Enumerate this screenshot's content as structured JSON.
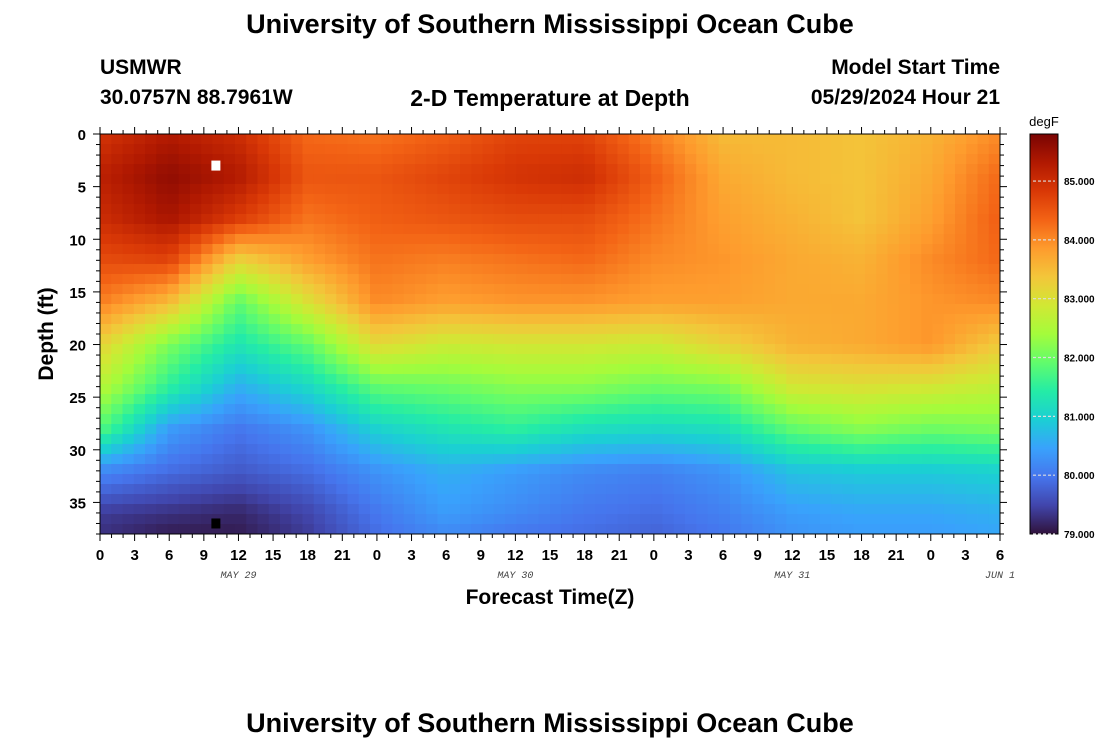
{
  "header": {
    "title": "University of Southern Mississippi Ocean Cube",
    "station": "USMWR",
    "coords": "30.0757N  88.7961W",
    "plot_title": "2-D Temperature at Depth",
    "start_label": "Model Start Time",
    "start_value": "05/29/2024 Hour 21",
    "footer_title": "University of Southern Mississippi Ocean Cube"
  },
  "chart_data": {
    "type": "heatmap",
    "title": "2-D Temperature at Depth",
    "xlabel": "Forecast Time(Z)",
    "ylabel": "Depth (ft)",
    "x_tick_labels": [
      "0",
      "3",
      "6",
      "9",
      "12",
      "15",
      "18",
      "21",
      "0",
      "3",
      "6",
      "9",
      "12",
      "15",
      "18",
      "21",
      "0",
      "3",
      "6",
      "9",
      "12",
      "15",
      "18",
      "21",
      "0",
      "3",
      "6"
    ],
    "day_labels": [
      {
        "label": "MAY 29",
        "x_hour": 12
      },
      {
        "label": "MAY 30",
        "x_hour": 36
      },
      {
        "label": "MAY 31",
        "x_hour": 60
      },
      {
        "label": "JUN 1",
        "x_hour": 78
      }
    ],
    "x_range_hours": [
      0,
      78
    ],
    "y_ticks": [
      0,
      5,
      10,
      15,
      20,
      25,
      30,
      35
    ],
    "y_range": [
      0,
      38
    ],
    "y_inverted": true,
    "colorbar": {
      "unit": "degF",
      "range": [
        79.0,
        85.8
      ],
      "tick_labels": [
        "79.000",
        "80.000",
        "81.000",
        "82.000",
        "83.000",
        "84.000",
        "85.000"
      ],
      "tick_values": [
        79,
        80,
        81,
        82,
        83,
        84,
        85
      ],
      "colormap": [
        "#30123b",
        "#4145ab",
        "#4675ed",
        "#39a2fc",
        "#1bcfd4",
        "#24eca6",
        "#61fc6c",
        "#a4fc3b",
        "#d1e834",
        "#f3c63a",
        "#fe9b2d",
        "#f36315",
        "#d93806",
        "#b11901",
        "#7a0403"
      ]
    },
    "temperature_grid": {
      "x_hours": [
        0,
        6,
        12,
        18,
        24,
        30,
        36,
        42,
        48,
        54,
        60,
        66,
        72,
        78
      ],
      "depths_ft": [
        0,
        4,
        8,
        12,
        16,
        20,
        24,
        28,
        32,
        36,
        38
      ],
      "values": [
        [
          84.9,
          85.3,
          85.0,
          84.3,
          84.2,
          84.4,
          84.7,
          84.7,
          84.1,
          83.5,
          83.5,
          83.4,
          83.6,
          84.0
        ],
        [
          85.2,
          85.6,
          85.3,
          84.5,
          84.5,
          84.7,
          84.9,
          85.0,
          84.4,
          83.7,
          83.5,
          83.4,
          83.7,
          84.3
        ],
        [
          85.0,
          85.4,
          84.8,
          84.2,
          84.4,
          84.5,
          84.6,
          84.6,
          84.2,
          83.8,
          83.6,
          83.4,
          83.8,
          84.4
        ],
        [
          84.6,
          84.7,
          83.2,
          83.8,
          84.2,
          84.1,
          84.2,
          84.3,
          84.0,
          83.9,
          83.7,
          83.6,
          84.0,
          84.3
        ],
        [
          84.1,
          83.5,
          81.9,
          83.0,
          84.0,
          83.8,
          83.9,
          83.9,
          83.8,
          83.8,
          83.7,
          83.7,
          83.9,
          84.0
        ],
        [
          83.2,
          82.1,
          81.3,
          81.9,
          83.1,
          82.8,
          82.9,
          82.9,
          82.8,
          83.2,
          83.6,
          83.7,
          83.9,
          83.3
        ],
        [
          82.6,
          81.5,
          80.6,
          81.1,
          81.9,
          82.0,
          82.2,
          82.2,
          82.0,
          82.1,
          82.9,
          83.0,
          82.9,
          82.7
        ],
        [
          81.8,
          80.4,
          80.0,
          80.3,
          81.0,
          81.3,
          81.5,
          81.2,
          81.1,
          81.2,
          81.9,
          82.2,
          82.0,
          82.1
        ],
        [
          80.2,
          79.9,
          79.7,
          79.9,
          80.3,
          80.6,
          80.4,
          80.2,
          80.1,
          80.3,
          80.8,
          80.9,
          80.9,
          81.0
        ],
        [
          79.4,
          79.3,
          79.2,
          79.5,
          80.0,
          80.4,
          80.2,
          80.0,
          79.9,
          80.1,
          80.4,
          80.5,
          80.5,
          80.6
        ],
        [
          79.3,
          79.1,
          79.1,
          79.4,
          79.9,
          80.2,
          80.0,
          79.9,
          79.8,
          80.0,
          80.3,
          80.4,
          80.4,
          80.5
        ]
      ]
    },
    "markers": [
      {
        "name": "surface-marker",
        "x_hour": 10,
        "depth_ft": 3,
        "color": "#ffffff"
      },
      {
        "name": "bottom-marker",
        "x_hour": 10,
        "depth_ft": 37,
        "color": "#000000"
      }
    ]
  }
}
